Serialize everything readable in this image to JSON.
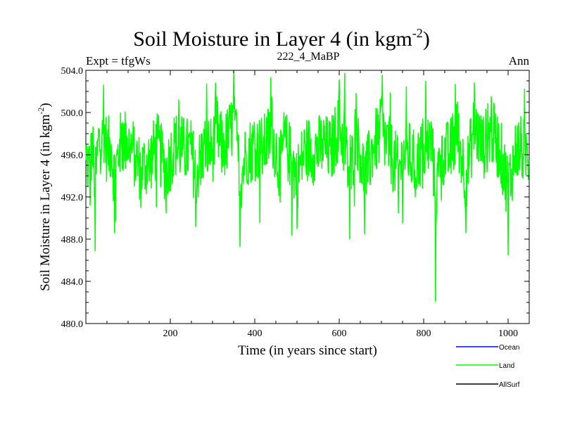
{
  "chart_data": {
    "type": "line",
    "title_main": "Soil Moisture in Layer 4 (in kgm",
    "title_sup": "-2",
    "title_close": ")",
    "subtitle_left": "Expt = tfgWs",
    "subtitle_center": "222_4_MaBP",
    "subtitle_right": "Ann",
    "xlabel": "Time (in years since start)",
    "ylabel_main": "Soil Moisture in Layer 4 (in kgm",
    "ylabel_sup": "-2",
    "ylabel_close": ")",
    "xlim": [
      0,
      1050
    ],
    "ylim": [
      480,
      504
    ],
    "xticks": [
      200,
      400,
      600,
      800,
      1000
    ],
    "xtick_labels": [
      "200",
      "400",
      "600",
      "800",
      "1000"
    ],
    "yticks": [
      480,
      484,
      488,
      492,
      496,
      500,
      504
    ],
    "ytick_labels": [
      "480.0",
      "484.0",
      "488.0",
      "492.0",
      "496.0",
      "500.0",
      "504.0"
    ],
    "legend_position": "bottom-right",
    "series": [
      {
        "name": "Ocean",
        "color": "#0000ff",
        "values": []
      },
      {
        "name": "Land",
        "color": "#00ff00",
        "values": []
      },
      {
        "name": "AllSurf",
        "color": "#000000",
        "values": []
      }
    ],
    "land_sample_points": [
      [
        0,
        495.5
      ],
      [
        5,
        493.0
      ],
      [
        10,
        491.2
      ],
      [
        15,
        498.0
      ],
      [
        22,
        486.9
      ],
      [
        30,
        498.5
      ],
      [
        38,
        497.5
      ],
      [
        42,
        502.6
      ],
      [
        50,
        496.0
      ],
      [
        60,
        497.0
      ],
      [
        68,
        488.6
      ],
      [
        80,
        497.5
      ],
      [
        95,
        499.0
      ],
      [
        110,
        496.5
      ],
      [
        130,
        491.0
      ],
      [
        150,
        493.5
      ],
      [
        170,
        497.5
      ],
      [
        190,
        490.5
      ],
      [
        210,
        498.0
      ],
      [
        230,
        496.5
      ],
      [
        250,
        496.0
      ],
      [
        260,
        489.2
      ],
      [
        280,
        497.0
      ],
      [
        300,
        496.5
      ],
      [
        310,
        501.5
      ],
      [
        325,
        496.0
      ],
      [
        350,
        503.9
      ],
      [
        360,
        497.0
      ],
      [
        365,
        487.3
      ],
      [
        380,
        495.8
      ],
      [
        400,
        497.0
      ],
      [
        420,
        496.5
      ],
      [
        440,
        501.5
      ],
      [
        460,
        491.5
      ],
      [
        470,
        499.0
      ],
      [
        480,
        496.0
      ],
      [
        500,
        489.0
      ],
      [
        520,
        497.0
      ],
      [
        540,
        496.0
      ],
      [
        560,
        497.5
      ],
      [
        580,
        496.0
      ],
      [
        600,
        503.1
      ],
      [
        615,
        496.5
      ],
      [
        625,
        488.0
      ],
      [
        640,
        501.8
      ],
      [
        650,
        496.0
      ],
      [
        660,
        488.5
      ],
      [
        680,
        497.0
      ],
      [
        700,
        501.5
      ],
      [
        720,
        496.0
      ],
      [
        740,
        490.5
      ],
      [
        760,
        496.5
      ],
      [
        780,
        492.0
      ],
      [
        800,
        497.0
      ],
      [
        820,
        498.0
      ],
      [
        828,
        482.1
      ],
      [
        840,
        496.0
      ],
      [
        860,
        495.0
      ],
      [
        880,
        501.0
      ],
      [
        900,
        488.6
      ],
      [
        920,
        502.8
      ],
      [
        940,
        497.0
      ],
      [
        960,
        501.5
      ],
      [
        980,
        496.5
      ],
      [
        1000,
        486.5
      ],
      [
        1020,
        497.0
      ],
      [
        1040,
        496.0
      ],
      [
        1050,
        495.5
      ]
    ]
  }
}
